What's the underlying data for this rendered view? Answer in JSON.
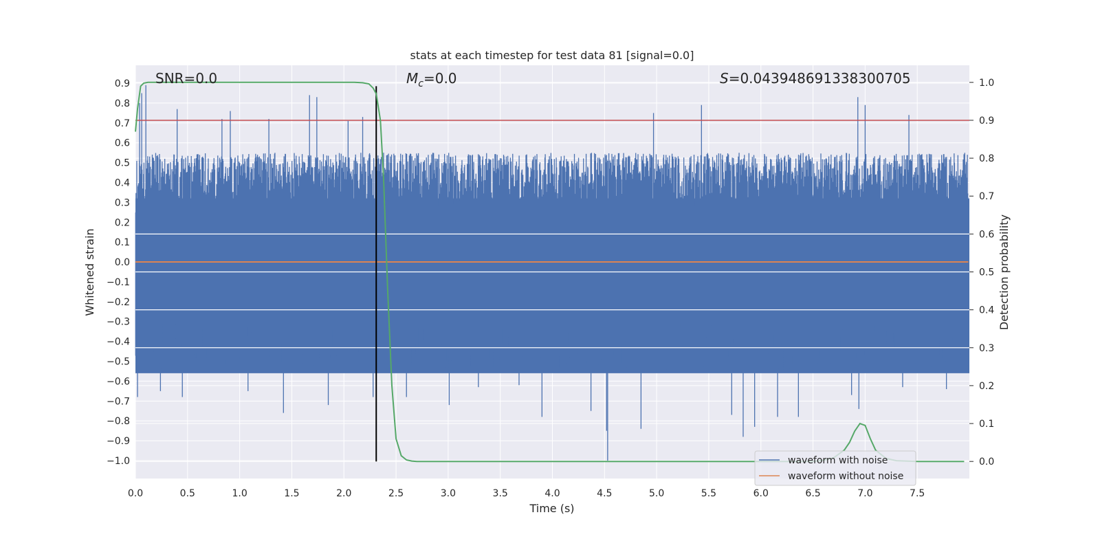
{
  "chart_data": {
    "type": "line",
    "title": "stats at each timestep for test data 81 [signal=0.0]",
    "xlabel": "Time (s)",
    "ylabel": "Whitened strain",
    "ylabel_right": "Detection probability",
    "xlim": [
      0.0,
      8.0
    ],
    "ylim": [
      -1.09,
      0.99
    ],
    "ylim_right": [
      -0.045,
      1.045
    ],
    "grid": true,
    "legend_placement": "lower-right",
    "x_ticks": [
      "0.0",
      "0.5",
      "1.0",
      "1.5",
      "2.0",
      "2.5",
      "3.0",
      "3.5",
      "4.0",
      "4.5",
      "5.0",
      "5.5",
      "6.0",
      "6.5",
      "7.0",
      "7.5"
    ],
    "y_ticks": [
      "0.9",
      "0.8",
      "0.7",
      "0.6",
      "0.5",
      "0.4",
      "0.3",
      "0.2",
      "0.1",
      "0.0",
      "−0.1",
      "−0.2",
      "−0.3",
      "−0.4",
      "−0.5",
      "−0.6",
      "−0.7",
      "−0.8",
      "−0.9",
      "−1.0"
    ],
    "y_ticks_right": [
      "1.0",
      "0.9",
      "0.8",
      "0.7",
      "0.6",
      "0.5",
      "0.4",
      "0.3",
      "0.2",
      "0.1",
      "0.0"
    ],
    "annotations": {
      "snr_prefix": "SNR=",
      "snr_value": "0.0",
      "mc_symbol": "M",
      "mc_sub": "c",
      "mc_value": "=0.0",
      "s_symbol": "S",
      "s_value": "=0.043948691338300705"
    },
    "threshold": {
      "y_right": 0.9,
      "color": "#c44e52"
    },
    "marker_line": {
      "x": 2.31,
      "color": "#000000"
    },
    "series": [
      {
        "name": "waveform with noise",
        "axis": "left",
        "color": "#4c72b0",
        "note_hidden": "",
        "typical_range": [
          -0.55,
          0.55
        ],
        "spikes": [
          {
            "x": 0.02,
            "y": -0.68
          },
          {
            "x": 0.04,
            "y": 0.8
          },
          {
            "x": 0.06,
            "y": 0.85
          },
          {
            "x": 0.1,
            "y": 0.89
          },
          {
            "x": 0.24,
            "y": -0.65
          },
          {
            "x": 0.4,
            "y": 0.77
          },
          {
            "x": 0.45,
            "y": -0.68
          },
          {
            "x": 0.83,
            "y": 0.72
          },
          {
            "x": 0.91,
            "y": 0.76
          },
          {
            "x": 1.08,
            "y": -0.65
          },
          {
            "x": 1.28,
            "y": 0.72
          },
          {
            "x": 1.42,
            "y": -0.76
          },
          {
            "x": 1.67,
            "y": 0.84
          },
          {
            "x": 1.74,
            "y": 0.83
          },
          {
            "x": 1.85,
            "y": -0.72
          },
          {
            "x": 2.04,
            "y": 0.71
          },
          {
            "x": 2.18,
            "y": 0.73
          },
          {
            "x": 2.28,
            "y": -0.68
          },
          {
            "x": 2.6,
            "y": -0.68
          },
          {
            "x": 3.01,
            "y": -0.72
          },
          {
            "x": 3.29,
            "y": -0.63
          },
          {
            "x": 3.68,
            "y": -0.62
          },
          {
            "x": 3.9,
            "y": -0.78
          },
          {
            "x": 4.37,
            "y": -0.75
          },
          {
            "x": 4.52,
            "y": -0.85
          },
          {
            "x": 4.53,
            "y": -1.0
          },
          {
            "x": 4.85,
            "y": -0.84
          },
          {
            "x": 4.97,
            "y": 0.75
          },
          {
            "x": 5.43,
            "y": 0.79
          },
          {
            "x": 5.72,
            "y": -0.77
          },
          {
            "x": 5.83,
            "y": -0.88
          },
          {
            "x": 5.94,
            "y": -0.83
          },
          {
            "x": 6.16,
            "y": -0.78
          },
          {
            "x": 6.36,
            "y": -0.78
          },
          {
            "x": 6.87,
            "y": -0.67
          },
          {
            "x": 6.93,
            "y": 0.83
          },
          {
            "x": 6.94,
            "y": -0.74
          },
          {
            "x": 7.0,
            "y": 0.79
          },
          {
            "x": 7.36,
            "y": -0.63
          },
          {
            "x": 7.42,
            "y": 0.74
          },
          {
            "x": 7.78,
            "y": -0.64
          }
        ]
      },
      {
        "name": "waveform without noise",
        "axis": "left",
        "color": "#dd8452",
        "x": [
          0.0,
          7.99
        ],
        "y": [
          0.0,
          0.0
        ]
      },
      {
        "name": "Detection probability",
        "axis": "right",
        "color": "#55a868",
        "x": [
          0.0,
          0.02,
          0.05,
          0.08,
          0.12,
          0.2,
          0.5,
          1.0,
          1.5,
          2.0,
          2.1,
          2.18,
          2.24,
          2.28,
          2.31,
          2.35,
          2.38,
          2.42,
          2.46,
          2.5,
          2.55,
          2.6,
          2.65,
          2.7,
          3.0,
          4.0,
          5.0,
          6.0,
          6.5,
          6.6,
          6.7,
          6.8,
          6.85,
          6.9,
          6.95,
          7.0,
          7.05,
          7.1,
          7.2,
          7.3,
          7.5,
          7.7,
          7.95
        ],
        "y": [
          0.87,
          0.93,
          0.99,
          0.998,
          1.0,
          1.0,
          1.0,
          1.0,
          1.0,
          1.0,
          1.0,
          0.999,
          0.996,
          0.985,
          0.97,
          0.9,
          0.75,
          0.45,
          0.2,
          0.06,
          0.015,
          0.004,
          0.001,
          0.0,
          0.0,
          0.0,
          0.0,
          0.0,
          0.0,
          0.003,
          0.01,
          0.03,
          0.05,
          0.08,
          0.1,
          0.095,
          0.06,
          0.03,
          0.008,
          0.002,
          0.0,
          0.0,
          0.0
        ]
      }
    ]
  }
}
